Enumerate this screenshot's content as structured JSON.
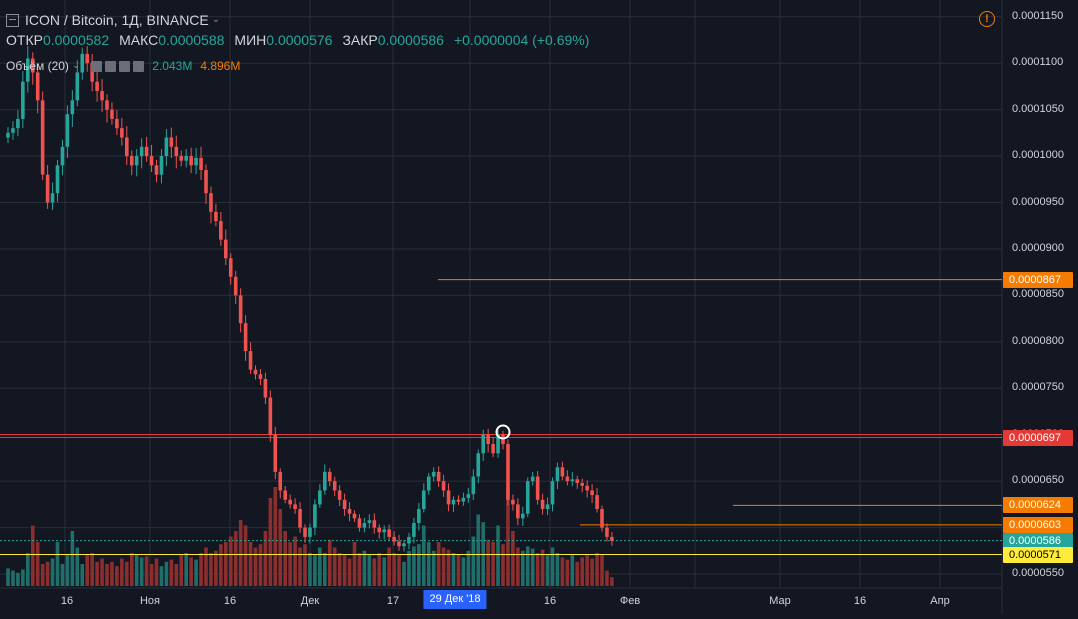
{
  "header": {
    "symbol_title": "ICON / Bitcoin, 1Д, BINANCE",
    "open_label": "ОТКР",
    "open_value": "0.0000582",
    "high_label": "МАКС",
    "high_value": "0.0000588",
    "low_label": "МИН",
    "low_value": "0.0000576",
    "close_label": "ЗАКР",
    "close_value": "0.0000586",
    "change": "+0.0000004 (+0.69%)",
    "volume_label": "Объём (20)",
    "volume_value": "2.043M",
    "volume_ma": "4.896M"
  },
  "colors": {
    "background": "#131722",
    "up": "#26a69a",
    "down": "#ef5350",
    "grid": "#2a2e39",
    "orange": "#f57c00",
    "red_line": "#e53935",
    "yellow": "#ffeb3b",
    "vol_up": "#1f6e69",
    "vol_down": "#8b2e2e"
  },
  "price_axis": {
    "ticks": [
      "0.0001150",
      "0.0001100",
      "0.0001050",
      "0.0001000",
      "0.0000950",
      "0.0000900",
      "0.0000850",
      "0.0000800",
      "0.0000750",
      "0.0000700",
      "0.0000650",
      "0.0000600",
      "0.0000550"
    ]
  },
  "time_axis": {
    "labels": [
      "16",
      "Ноя",
      "16",
      "Дек",
      "17",
      "16",
      "Фев",
      "Мар",
      "16",
      "Апр"
    ],
    "crosshair_label": "29 Дек '18"
  },
  "horizontal_lines": [
    {
      "price": 8.67e-05,
      "label": "0.0000867",
      "color": "orange"
    },
    {
      "price": 6.97e-05,
      "label": "0.0000697",
      "color": "red"
    },
    {
      "price": 6.24e-05,
      "label": "0.0000624",
      "color": "orange"
    },
    {
      "price": 6.03e-05,
      "label": "0.0000603",
      "color": "orange"
    },
    {
      "price": 5.86e-05,
      "label": "0.0000586",
      "color": "teal"
    },
    {
      "price": 5.71e-05,
      "label": "0.0000571",
      "color": "yellow"
    }
  ],
  "chart_data": {
    "type": "candlestick",
    "title": "ICON / Bitcoin, 1Д, BINANCE",
    "ylim": [
      5.35e-05,
      0.0001168
    ],
    "series": [
      {
        "name": "ICON / Bitcoin",
        "closes": [
          0.0001025,
          0.000103,
          0.000104,
          0.000108,
          0.0001105,
          0.000109,
          0.000106,
          9.8e-05,
          9.5e-05,
          9.6e-05,
          9.9e-05,
          0.000101,
          0.0001045,
          0.000106,
          0.000109,
          0.000111,
          0.00011,
          0.000108,
          0.000107,
          0.000106,
          0.000105,
          0.000104,
          0.000103,
          0.000102,
          0.0001,
          9.9e-05,
          0.0001,
          0.000101,
          0.0001,
          9.9e-05,
          9.8e-05,
          0.0001,
          0.000102,
          0.000101,
          0.0001,
          9.95e-05,
          0.0001,
          9.9e-05,
          9.98e-05,
          9.85e-05,
          9.6e-05,
          9.4e-05,
          9.3e-05,
          9.1e-05,
          8.9e-05,
          8.7e-05,
          8.5e-05,
          8.2e-05,
          7.9e-05,
          7.7e-05,
          7.65e-05,
          7.6e-05,
          7.4e-05,
          7e-05,
          6.6e-05,
          6.4e-05,
          6.3e-05,
          6.25e-05,
          6.2e-05,
          6e-05,
          5.9e-05,
          6e-05,
          6.25e-05,
          6.4e-05,
          6.6e-05,
          6.5e-05,
          6.4e-05,
          6.3e-05,
          6.2e-05,
          6.15e-05,
          6.1e-05,
          6e-05,
          6.05e-05,
          6.08e-05,
          6e-05,
          5.95e-05,
          5.98e-05,
          5.9e-05,
          5.85e-05,
          5.8e-05,
          5.83e-05,
          5.9e-05,
          6.05e-05,
          6.2e-05,
          6.4e-05,
          6.55e-05,
          6.6e-05,
          6.5e-05,
          6.4e-05,
          6.25e-05,
          6.3e-05,
          6.28e-05,
          6.32e-05,
          6.36e-05,
          6.55e-05,
          6.8e-05,
          7e-05,
          6.9e-05,
          6.8e-05,
          7e-05,
          6.9e-05,
          6.3e-05,
          6.25e-05,
          6.1e-05,
          6.15e-05,
          6.5e-05,
          6.55e-05,
          6.3e-05,
          6.2e-05,
          6.25e-05,
          6.5e-05,
          6.65e-05,
          6.55e-05,
          6.5e-05,
          6.52e-05,
          6.48e-05,
          6.45e-05,
          6.4e-05,
          6.35e-05,
          6.2e-05,
          6e-05,
          5.9e-05,
          5.86e-05
        ],
        "volumes": [
          0.16,
          0.14,
          0.12,
          0.15,
          0.3,
          0.55,
          0.4,
          0.2,
          0.22,
          0.25,
          0.4,
          0.2,
          0.28,
          0.5,
          0.35,
          0.2,
          0.28,
          0.3,
          0.22,
          0.25,
          0.2,
          0.22,
          0.18,
          0.25,
          0.22,
          0.3,
          0.28,
          0.26,
          0.27,
          0.2,
          0.25,
          0.18,
          0.22,
          0.24,
          0.2,
          0.28,
          0.3,
          0.26,
          0.24,
          0.3,
          0.35,
          0.3,
          0.32,
          0.38,
          0.4,
          0.45,
          0.5,
          0.6,
          0.55,
          0.4,
          0.35,
          0.38,
          0.5,
          0.8,
          0.9,
          0.7,
          0.5,
          0.4,
          0.45,
          0.35,
          0.38,
          0.3,
          0.28,
          0.35,
          0.3,
          0.42,
          0.35,
          0.3,
          0.28,
          0.25,
          0.4,
          0.3,
          0.32,
          0.28,
          0.25,
          0.3,
          0.26,
          0.35,
          0.3,
          0.28,
          0.22,
          0.32,
          0.36,
          0.38,
          0.55,
          0.4,
          0.32,
          0.4,
          0.35,
          0.33,
          0.3,
          0.28,
          0.26,
          0.32,
          0.45,
          0.65,
          0.58,
          0.42,
          0.4,
          0.55,
          0.38,
          0.9,
          0.5,
          0.35,
          0.32,
          0.36,
          0.34,
          0.3,
          0.33,
          0.28,
          0.35,
          0.3,
          0.26,
          0.24,
          0.28,
          0.22,
          0.26,
          0.28,
          0.25,
          0.3,
          0.28,
          0.14,
          0.08
        ]
      }
    ]
  }
}
